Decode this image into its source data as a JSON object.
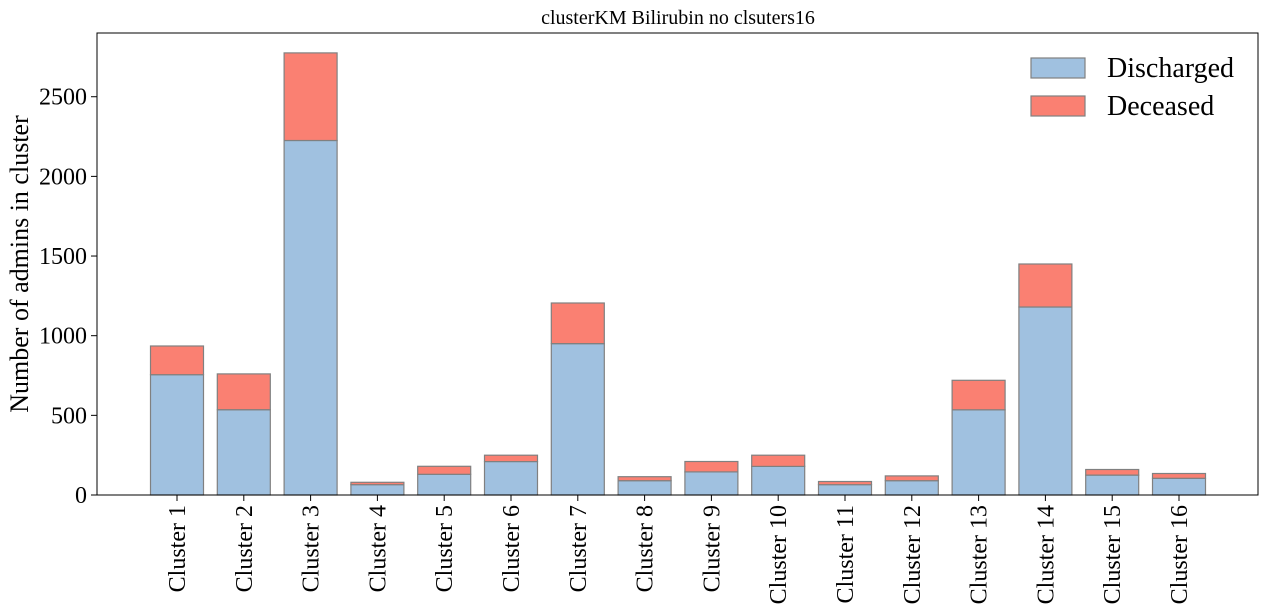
{
  "chart_data": {
    "type": "bar",
    "stacked": true,
    "title": "clusterKM Bilirubin no clsuters16",
    "xlabel": "",
    "ylabel": "Number of admins in cluster",
    "ylim": [
      0,
      2900
    ],
    "yticks": [
      0,
      500,
      1000,
      1500,
      2000,
      2500
    ],
    "grid": false,
    "legend_position": "top-right",
    "categories": [
      "Cluster 1",
      "Cluster 2",
      "Cluster 3",
      "Cluster 4",
      "Cluster 5",
      "Cluster 6",
      "Cluster 7",
      "Cluster 8",
      "Cluster 9",
      "Cluster 10",
      "Cluster 11",
      "Cluster 12",
      "Cluster 13",
      "Cluster 14",
      "Cluster 15",
      "Cluster 16"
    ],
    "series": [
      {
        "name": "Discharged",
        "color": "#a0c1e0",
        "values": [
          755,
          535,
          2225,
          65,
          130,
          210,
          950,
          90,
          145,
          180,
          65,
          90,
          535,
          1180,
          125,
          105
        ]
      },
      {
        "name": "Deceased",
        "color": "#fa8072",
        "values": [
          180,
          225,
          550,
          15,
          50,
          40,
          255,
          25,
          65,
          70,
          20,
          30,
          185,
          270,
          35,
          30
        ]
      }
    ],
    "edge_color": "#808080"
  }
}
